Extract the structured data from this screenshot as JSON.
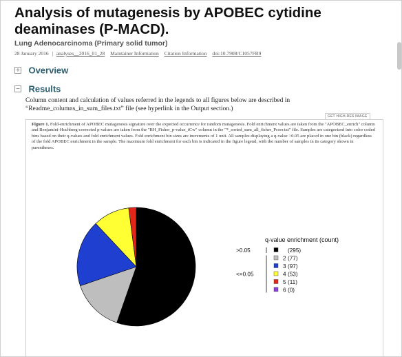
{
  "header": {
    "title": "Analysis of mutagenesis by APOBEC cytidine deaminases (P-MACD).",
    "subtitle": "Lung Adenocarcinoma (Primary solid tumor)",
    "date": "28 January 2016",
    "separator": "|",
    "analysis_id": "analyses__2016_01_28",
    "links": [
      "Maintainer Information",
      "Citation Information",
      "doi:10.7908/C1057FB9"
    ]
  },
  "sections": {
    "overview": {
      "label": "Overview",
      "toggle": "+"
    },
    "results": {
      "label": "Results",
      "toggle": "−"
    }
  },
  "results_text": "Column content and calculation of values referred in the legends to all figures below are described in “Readme_columns_in_sum_files.txt” file (see hyperlink in the Output section.)",
  "hires_button": "GET HIGH-RES IMAGE",
  "figure": {
    "label": "Figure 1.",
    "caption": "Fold-enrichment of APOBEC mutagenesis signature over the expected occurrence for random mutagenesis. Fold enrichment values are taken from the \"APOBEC_enrich\" column and Benjamini-Hochberg-corrected p-values are taken from the \"BH_Fisher_p-value_tCw\" column in the \"*_sorted_sum_all_fisher_Pcorr.txt\" file. Samples are categorized into color coded bins based on their q-values and fold enrichment values. Fold enrichment bin sizes are increments of 1 unit. All samples displaying a q-value >0.05 are placed in one bin (black) regardless of the fold APOBEC enrichment in the sample. The maximum fold enrichment for each bin is indicated in the figure legend, with the number of samples in its category shown in parentheses."
  },
  "chart_data": {
    "type": "pie",
    "title": "q-value enrichment (count)",
    "groups": [
      ">0.05",
      "<=0.05"
    ],
    "slices": [
      {
        "label": "",
        "count": "(295)",
        "value": 295,
        "color": "#000000",
        "group": ">0.05"
      },
      {
        "label": "2",
        "count": "(77)",
        "value": 77,
        "color": "#bebebe",
        "group": "<=0.05"
      },
      {
        "label": "3",
        "count": "(97)",
        "value": 97,
        "color": "#1f3fd1",
        "group": "<=0.05"
      },
      {
        "label": "4",
        "count": "(53)",
        "value": 53,
        "color": "#ffff33",
        "group": "<=0.05"
      },
      {
        "label": "5",
        "count": "(11)",
        "value": 11,
        "color": "#e3261c",
        "group": "<=0.05"
      },
      {
        "label": "6",
        "count": "(0)",
        "value": 0,
        "color": "#8e3fd6",
        "group": "<=0.05"
      }
    ]
  }
}
